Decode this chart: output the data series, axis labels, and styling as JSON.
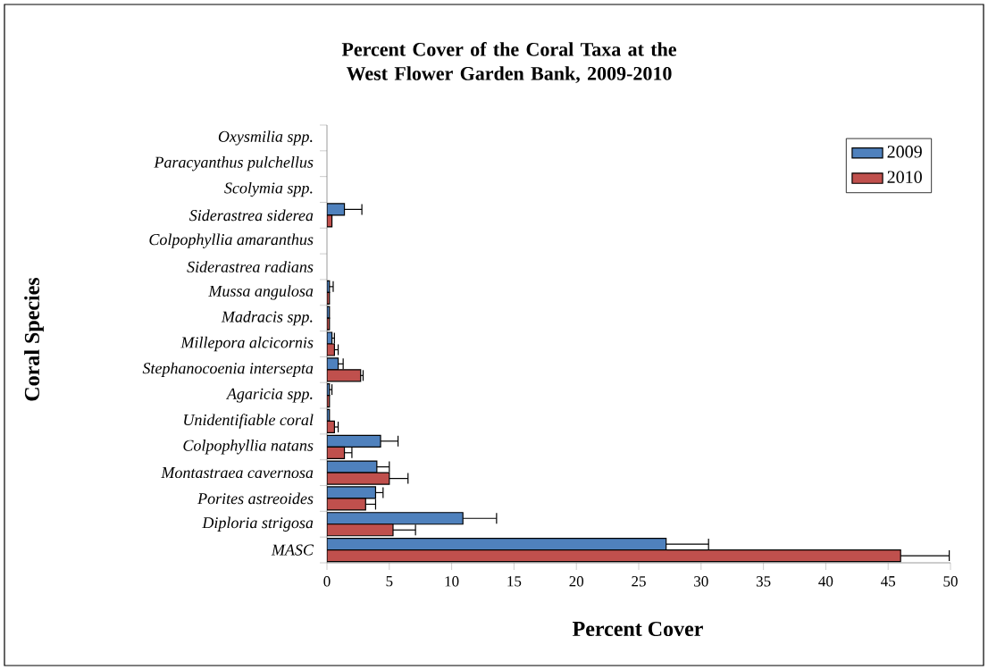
{
  "chart_data": {
    "type": "bar",
    "orientation": "horizontal",
    "title": "Percent Cover of the Coral Taxa at the West Flower Garden Bank, 2009-2010",
    "xlabel": "Percent Cover",
    "ylabel": "Coral Species",
    "categories": [
      "Oxysmilia spp.",
      "Paracyanthus pulchellus",
      "Scolymia spp.",
      "Siderastrea siderea",
      "Colpophyllia amaranthus",
      "Siderastrea radians",
      "Mussa angulosa",
      "Madracis spp.",
      "Millepora alcicornis",
      "Stephanocoenia intersepta",
      "Agaricia spp.",
      "Unidentifiable coral",
      "Colpophyllia natans",
      "Montastraea cavernosa",
      "Porites astreoides",
      "Diploria strigosa",
      "MASC"
    ],
    "series": [
      {
        "name": "2009",
        "color": "#4f81bd",
        "values": [
          null,
          null,
          null,
          1.4,
          null,
          null,
          0.2,
          0.2,
          0.4,
          0.9,
          0.2,
          0.2,
          4.3,
          4.0,
          3.9,
          10.9,
          27.2
        ],
        "errors": [
          null,
          null,
          null,
          1.4,
          null,
          null,
          0.3,
          null,
          0.2,
          0.4,
          0.2,
          null,
          1.4,
          1.0,
          0.6,
          2.7,
          3.4
        ]
      },
      {
        "name": "2010",
        "color": "#c0504d",
        "values": [
          null,
          null,
          null,
          0.4,
          null,
          null,
          0.2,
          0.2,
          0.6,
          2.7,
          0.2,
          0.6,
          1.4,
          5.0,
          3.1,
          5.3,
          46.0
        ],
        "errors": [
          null,
          null,
          null,
          null,
          null,
          null,
          null,
          null,
          0.3,
          0.2,
          null,
          0.3,
          0.6,
          1.5,
          0.8,
          1.8,
          3.9
        ]
      }
    ],
    "xlim": [
      0,
      50
    ],
    "xticks": [
      0,
      5,
      10,
      15,
      20,
      25,
      30,
      35,
      40,
      45,
      50
    ],
    "legend": "top right"
  }
}
